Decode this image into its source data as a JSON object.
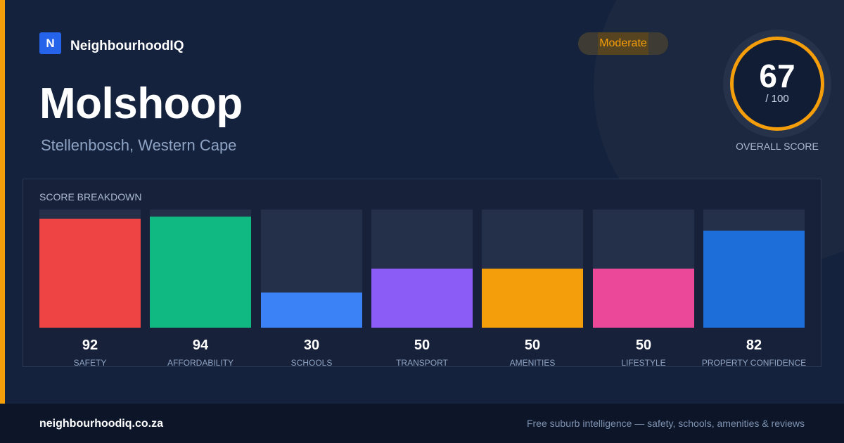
{
  "brand": {
    "logo_letter": "N",
    "name": "NeighbourhoodIQ"
  },
  "suburb": {
    "name": "Molshoop",
    "region": "Stellenbosch, Western Cape"
  },
  "rating_badge": "Moderate",
  "overall_score": {
    "value": "67",
    "max": "/ 100",
    "label": "OVERALL SCORE",
    "accent_color": "#f59e0b"
  },
  "breakdown": {
    "title": "SCORE BREAKDOWN",
    "items": [
      {
        "label": "SAFETY",
        "value": "92",
        "score": 92,
        "color": "#ef4444"
      },
      {
        "label": "AFFORDABILITY",
        "value": "94",
        "score": 94,
        "color": "#10b981"
      },
      {
        "label": "SCHOOLS",
        "value": "30",
        "score": 30,
        "color": "#3b82f6"
      },
      {
        "label": "TRANSPORT",
        "value": "50",
        "score": 50,
        "color": "#8b5cf6"
      },
      {
        "label": "AMENITIES",
        "value": "50",
        "score": 50,
        "color": "#f59e0b"
      },
      {
        "label": "LIFESTYLE",
        "value": "50",
        "score": 50,
        "color": "#ec4899"
      },
      {
        "label": "PROPERTY CONFIDENCE",
        "value": "82",
        "score": 82,
        "color": "#1d6ed8"
      }
    ]
  },
  "footer": {
    "domain": "neighbourhoodiq.co.za",
    "tagline": "Free suburb intelligence — safety, schools, amenities & reviews"
  }
}
